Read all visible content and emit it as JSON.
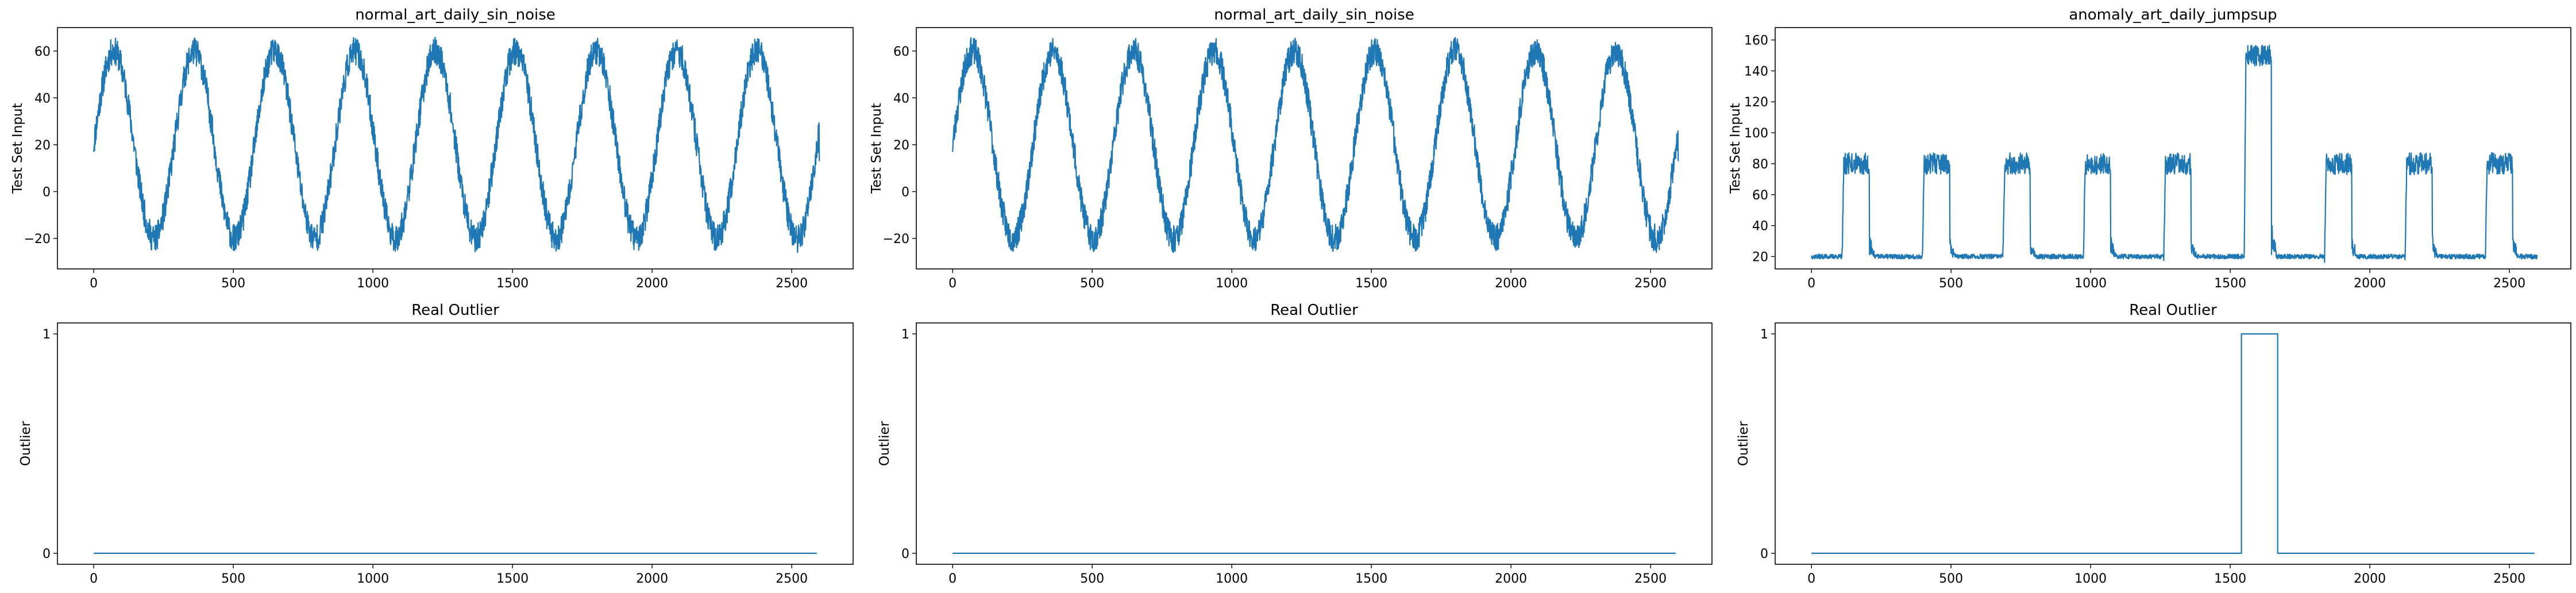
{
  "chart_data": [
    {
      "id": "p0",
      "type": "line",
      "title": "normal_art_daily_sin_noise",
      "ylabel": "Test Set Input",
      "xlabel": "",
      "xlim": [
        -130,
        2720
      ],
      "ylim": [
        -33,
        70
      ],
      "xticks": [
        0,
        500,
        1000,
        1500,
        2000,
        2500
      ],
      "yticks": [
        -20,
        0,
        20,
        40,
        60
      ],
      "series": [
        {
          "color": "#1f77b4",
          "generator": "sin",
          "n": 2600,
          "step": 1,
          "offset": 20,
          "amplitude": 40,
          "period": 288,
          "noise": 6,
          "seed": 11,
          "end_value": 13
        }
      ]
    },
    {
      "id": "p1",
      "type": "line",
      "title": "normal_art_daily_sin_noise",
      "ylabel": "Test Set Input",
      "xlabel": "",
      "xlim": [
        -130,
        2720
      ],
      "ylim": [
        -33,
        70
      ],
      "xticks": [
        0,
        500,
        1000,
        1500,
        2000,
        2500
      ],
      "yticks": [
        -20,
        0,
        20,
        40,
        60
      ],
      "series": [
        {
          "color": "#1f77b4",
          "generator": "sin",
          "n": 2600,
          "step": 1,
          "offset": 20,
          "amplitude": 40,
          "period": 288,
          "noise": 6,
          "seed": 23,
          "end_value": 13
        }
      ]
    },
    {
      "id": "p2",
      "type": "line",
      "title": "anomaly_art_daily_jumpsup",
      "ylabel": "Test Set Input",
      "xlabel": "",
      "xlim": [
        -130,
        2720
      ],
      "ylim": [
        12,
        168
      ],
      "xticks": [
        0,
        500,
        1000,
        1500,
        2000,
        2500
      ],
      "yticks": [
        20,
        40,
        60,
        80,
        100,
        120,
        140,
        160
      ],
      "series": [
        {
          "color": "#1f77b4",
          "generator": "plateau",
          "n": 2600,
          "step": 1,
          "base": 20,
          "base_noise": 1.5,
          "seed": 37,
          "plateaus": [
            {
              "start": 110,
              "end": 208,
              "level": 80
            },
            {
              "start": 398,
              "end": 496,
              "level": 80
            },
            {
              "start": 686,
              "end": 784,
              "level": 80
            },
            {
              "start": 974,
              "end": 1072,
              "level": 80
            },
            {
              "start": 1262,
              "end": 1360,
              "level": 80
            },
            {
              "start": 1550,
              "end": 1648,
              "level": 150
            },
            {
              "start": 1838,
              "end": 1936,
              "level": 80
            },
            {
              "start": 2126,
              "end": 2224,
              "level": 80
            },
            {
              "start": 2414,
              "end": 2512,
              "level": 80
            }
          ],
          "plateau_noise": 7
        }
      ]
    },
    {
      "id": "p3",
      "type": "line",
      "title": "Real Outlier",
      "ylabel": "Outlier",
      "xlabel": "",
      "xlim": [
        -130,
        2720
      ],
      "ylim": [
        -0.05,
        1.05
      ],
      "xticks": [
        0,
        500,
        1000,
        1500,
        2000,
        2500
      ],
      "yticks": [
        0,
        1
      ],
      "series": [
        {
          "color": "#1f77b4",
          "x": [
            0,
            2590
          ],
          "y": [
            0,
            0
          ]
        }
      ]
    },
    {
      "id": "p4",
      "type": "line",
      "title": "Real Outlier",
      "ylabel": "Outlier",
      "xlabel": "",
      "xlim": [
        -130,
        2720
      ],
      "ylim": [
        -0.05,
        1.05
      ],
      "xticks": [
        0,
        500,
        1000,
        1500,
        2000,
        2500
      ],
      "yticks": [
        0,
        1
      ],
      "series": [
        {
          "color": "#1f77b4",
          "x": [
            0,
            2590
          ],
          "y": [
            0,
            0
          ]
        }
      ]
    },
    {
      "id": "p5",
      "type": "line",
      "title": "Real Outlier",
      "ylabel": "Outlier",
      "xlabel": "",
      "xlim": [
        -130,
        2720
      ],
      "ylim": [
        -0.05,
        1.05
      ],
      "xticks": [
        0,
        500,
        1000,
        1500,
        2000,
        2500
      ],
      "yticks": [
        0,
        1
      ],
      "series": [
        {
          "color": "#1f77b4",
          "x": [
            0,
            1540,
            1540,
            1670,
            1670,
            2590
          ],
          "y": [
            0,
            0,
            1,
            1,
            0,
            0
          ]
        }
      ]
    }
  ]
}
